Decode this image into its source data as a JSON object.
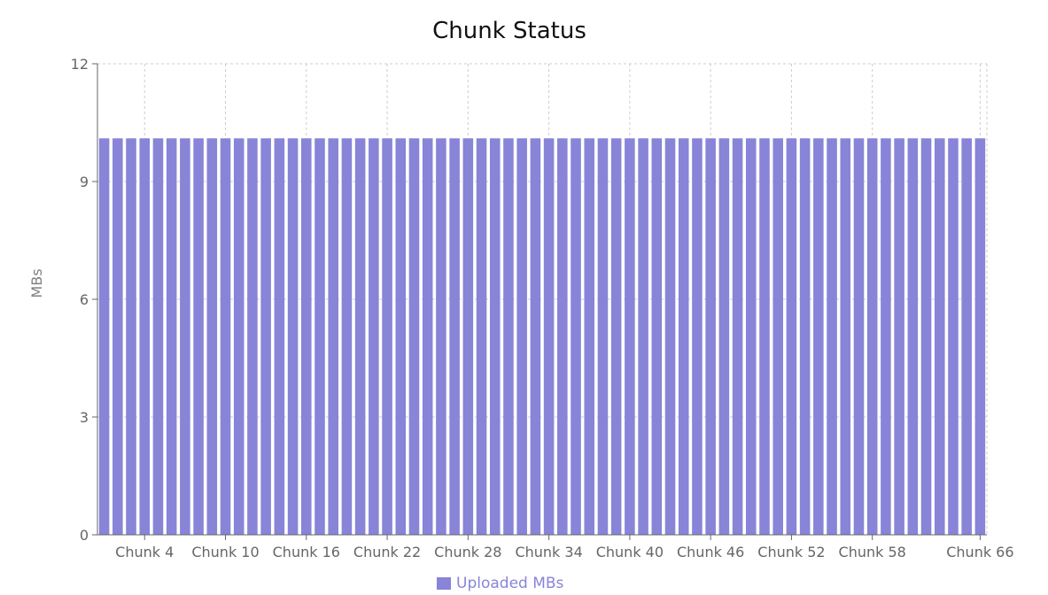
{
  "chart_data": {
    "type": "bar",
    "title": "Chunk Status",
    "xlabel": "",
    "ylabel": "MBs",
    "ylim": [
      0,
      12
    ],
    "yticks": [
      "0",
      "3",
      "6",
      "9",
      "12"
    ],
    "ytick_values": [
      0,
      3,
      6,
      9,
      12
    ],
    "categories": [
      "Chunk 1",
      "Chunk 2",
      "Chunk 3",
      "Chunk 4",
      "Chunk 5",
      "Chunk 6",
      "Chunk 7",
      "Chunk 8",
      "Chunk 9",
      "Chunk 10",
      "Chunk 11",
      "Chunk 12",
      "Chunk 13",
      "Chunk 14",
      "Chunk 15",
      "Chunk 16",
      "Chunk 17",
      "Chunk 18",
      "Chunk 19",
      "Chunk 20",
      "Chunk 21",
      "Chunk 22",
      "Chunk 23",
      "Chunk 24",
      "Chunk 25",
      "Chunk 26",
      "Chunk 27",
      "Chunk 28",
      "Chunk 29",
      "Chunk 30",
      "Chunk 31",
      "Chunk 32",
      "Chunk 33",
      "Chunk 34",
      "Chunk 35",
      "Chunk 36",
      "Chunk 37",
      "Chunk 38",
      "Chunk 39",
      "Chunk 40",
      "Chunk 41",
      "Chunk 42",
      "Chunk 43",
      "Chunk 44",
      "Chunk 45",
      "Chunk 46",
      "Chunk 47",
      "Chunk 48",
      "Chunk 49",
      "Chunk 50",
      "Chunk 51",
      "Chunk 52",
      "Chunk 53",
      "Chunk 54",
      "Chunk 55",
      "Chunk 56",
      "Chunk 57",
      "Chunk 58",
      "Chunk 59",
      "Chunk 60",
      "Chunk 61",
      "Chunk 62",
      "Chunk 63",
      "Chunk 64",
      "Chunk 65",
      "Chunk 66"
    ],
    "visible_xtick_labels": [
      "Chunk 4",
      "Chunk 10",
      "Chunk 16",
      "Chunk 22",
      "Chunk 28",
      "Chunk 34",
      "Chunk 40",
      "Chunk 46",
      "Chunk 52",
      "Chunk 58",
      "Chunk 66"
    ],
    "series": [
      {
        "name": "Uploaded MBs",
        "color": "#8884d8",
        "values": [
          10.1,
          10.1,
          10.1,
          10.1,
          10.1,
          10.1,
          10.1,
          10.1,
          10.1,
          10.1,
          10.1,
          10.1,
          10.1,
          10.1,
          10.1,
          10.1,
          10.1,
          10.1,
          10.1,
          10.1,
          10.1,
          10.1,
          10.1,
          10.1,
          10.1,
          10.1,
          10.1,
          10.1,
          10.1,
          10.1,
          10.1,
          10.1,
          10.1,
          10.1,
          10.1,
          10.1,
          10.1,
          10.1,
          10.1,
          10.1,
          10.1,
          10.1,
          10.1,
          10.1,
          10.1,
          10.1,
          10.1,
          10.1,
          10.1,
          10.1,
          10.1,
          10.1,
          10.1,
          10.1,
          10.1,
          10.1,
          10.1,
          10.1,
          10.1,
          10.1,
          10.1,
          10.1,
          10.1,
          10.1,
          10.1,
          10.1
        ]
      }
    ],
    "grid": true,
    "legend_position": "bottom-center"
  },
  "colors": {
    "bar": "#8884d8",
    "axis": "#666666",
    "grid": "#cccccc",
    "title": "#111111"
  }
}
